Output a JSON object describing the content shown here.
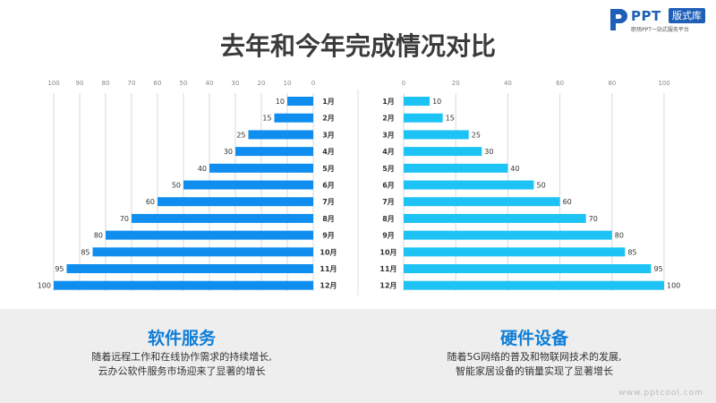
{
  "brand": {
    "name": "PPT",
    "badge": "版式库",
    "tagline": "职场PPT一站式服务平台",
    "watermark": "www.pptcool.com"
  },
  "title": "去年和今年完成情况对比",
  "chart_data": [
    {
      "type": "bar",
      "orientation": "horizontal",
      "direction": "right-to-left",
      "categories": [
        "1月",
        "2月",
        "3月",
        "4月",
        "5月",
        "6月",
        "7月",
        "8月",
        "9月",
        "10月",
        "11月",
        "12月"
      ],
      "values": [
        10,
        15,
        25,
        30,
        40,
        50,
        60,
        70,
        80,
        85,
        95,
        100
      ],
      "xlim": [
        0,
        100
      ],
      "x_ticks": [
        100,
        90,
        80,
        70,
        60,
        50,
        40,
        30,
        20,
        10,
        0
      ],
      "color": "#0f8ef0",
      "grid": true
    },
    {
      "type": "bar",
      "orientation": "horizontal",
      "direction": "left-to-right",
      "categories": [
        "1月",
        "2月",
        "3月",
        "4月",
        "5月",
        "6月",
        "7月",
        "8月",
        "9月",
        "10月",
        "11月",
        "12月"
      ],
      "values": [
        10,
        15,
        25,
        30,
        40,
        50,
        60,
        70,
        80,
        85,
        95,
        100
      ],
      "xlim": [
        0,
        100
      ],
      "x_ticks": [
        0,
        20,
        40,
        60,
        80,
        100
      ],
      "color": "#1ec3f5",
      "grid": true
    }
  ],
  "panels": {
    "left": {
      "title": "软件服务",
      "lines": [
        "随着远程工作和在线协作需求的持续增长,",
        "云办公软件服务市场迎来了显著的增长"
      ]
    },
    "right": {
      "title": "硬件设备",
      "lines": [
        "随着5G网络的普及和物联网技术的发展,",
        "智能家居设备的销量实现了显著增长"
      ]
    }
  }
}
